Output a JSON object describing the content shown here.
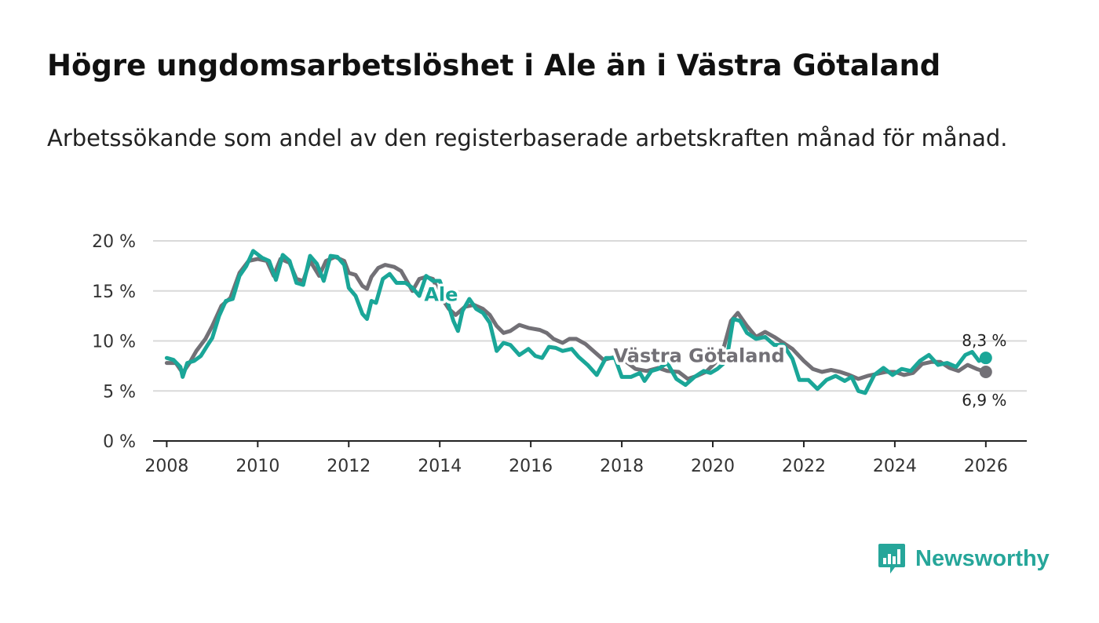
{
  "title": "Högre ungdomsarbetslöshet i Ale än i Västra Götaland",
  "subtitle": "Arbetssökande som andel av den registerbaserade arbetskraften månad för månad.",
  "brand": {
    "name": "Newsworthy",
    "icon": "bar-chart-speech-icon",
    "color": "#26a69a"
  },
  "chart_data": {
    "type": "line",
    "title": "Högre ungdomsarbetslöshet i Ale än i Västra Götaland",
    "xlabel": "",
    "ylabel": "",
    "xlim": [
      2007.7,
      2026.9
    ],
    "ylim": [
      0,
      20
    ],
    "y_ticks": [
      0,
      5,
      10,
      15,
      20
    ],
    "y_tick_labels": [
      "0 %",
      "5 %",
      "10 %",
      "15 %",
      "20 %"
    ],
    "x_ticks": [
      2008,
      2010,
      2012,
      2014,
      2016,
      2018,
      2020,
      2022,
      2024,
      2026
    ],
    "x_tick_labels": [
      "2008",
      "2010",
      "2012",
      "2014",
      "2016",
      "2018",
      "2020",
      "2022",
      "2024",
      "2026"
    ],
    "grid": true,
    "series": [
      {
        "name": "Västra Götaland",
        "label": "Västra Götaland",
        "color": "#727076",
        "end_label": "6,9 %",
        "points": [
          [
            2008.0,
            7.8
          ],
          [
            2008.2,
            7.8
          ],
          [
            2008.35,
            6.8
          ],
          [
            2008.5,
            7.8
          ],
          [
            2008.65,
            9.0
          ],
          [
            2008.85,
            10.2
          ],
          [
            2009.0,
            11.5
          ],
          [
            2009.2,
            13.5
          ],
          [
            2009.4,
            14.3
          ],
          [
            2009.6,
            16.8
          ],
          [
            2009.8,
            18.0
          ],
          [
            2010.0,
            18.2
          ],
          [
            2010.2,
            18.0
          ],
          [
            2010.35,
            16.5
          ],
          [
            2010.5,
            18.2
          ],
          [
            2010.7,
            17.8
          ],
          [
            2010.85,
            16.2
          ],
          [
            2011.0,
            16.0
          ],
          [
            2011.15,
            18.0
          ],
          [
            2011.35,
            16.5
          ],
          [
            2011.5,
            18.0
          ],
          [
            2011.7,
            18.4
          ],
          [
            2011.9,
            18.0
          ],
          [
            2012.0,
            16.8
          ],
          [
            2012.15,
            16.6
          ],
          [
            2012.3,
            15.5
          ],
          [
            2012.4,
            15.2
          ],
          [
            2012.5,
            16.4
          ],
          [
            2012.65,
            17.3
          ],
          [
            2012.8,
            17.6
          ],
          [
            2013.0,
            17.4
          ],
          [
            2013.15,
            17.0
          ],
          [
            2013.3,
            15.8
          ],
          [
            2013.4,
            15.0
          ],
          [
            2013.55,
            16.2
          ],
          [
            2013.7,
            16.4
          ],
          [
            2013.85,
            16.2
          ],
          [
            2014.0,
            14.6
          ],
          [
            2014.2,
            13.2
          ],
          [
            2014.35,
            12.6
          ],
          [
            2014.55,
            13.4
          ],
          [
            2014.75,
            13.6
          ],
          [
            2014.95,
            13.2
          ],
          [
            2015.1,
            12.6
          ],
          [
            2015.25,
            11.5
          ],
          [
            2015.4,
            10.8
          ],
          [
            2015.55,
            11.0
          ],
          [
            2015.75,
            11.6
          ],
          [
            2015.95,
            11.3
          ],
          [
            2016.2,
            11.1
          ],
          [
            2016.35,
            10.8
          ],
          [
            2016.5,
            10.2
          ],
          [
            2016.7,
            9.8
          ],
          [
            2016.85,
            10.2
          ],
          [
            2017.0,
            10.2
          ],
          [
            2017.2,
            9.7
          ],
          [
            2017.4,
            8.9
          ],
          [
            2017.6,
            8.1
          ],
          [
            2017.85,
            8.4
          ],
          [
            2018.1,
            7.9
          ],
          [
            2018.3,
            7.2
          ],
          [
            2018.55,
            7.0
          ],
          [
            2018.8,
            7.3
          ],
          [
            2019.0,
            7.0
          ],
          [
            2019.25,
            6.9
          ],
          [
            2019.45,
            6.2
          ],
          [
            2019.65,
            6.5
          ],
          [
            2019.85,
            6.9
          ],
          [
            2020.05,
            7.8
          ],
          [
            2020.25,
            9.5
          ],
          [
            2020.4,
            12.0
          ],
          [
            2020.55,
            12.8
          ],
          [
            2020.75,
            11.5
          ],
          [
            2020.95,
            10.4
          ],
          [
            2021.15,
            10.9
          ],
          [
            2021.35,
            10.4
          ],
          [
            2021.55,
            9.8
          ],
          [
            2021.75,
            9.2
          ],
          [
            2022.0,
            8.0
          ],
          [
            2022.2,
            7.2
          ],
          [
            2022.4,
            6.9
          ],
          [
            2022.6,
            7.1
          ],
          [
            2022.8,
            6.9
          ],
          [
            2023.0,
            6.6
          ],
          [
            2023.2,
            6.2
          ],
          [
            2023.4,
            6.5
          ],
          [
            2023.6,
            6.7
          ],
          [
            2023.8,
            6.9
          ],
          [
            2024.0,
            6.9
          ],
          [
            2024.2,
            6.6
          ],
          [
            2024.4,
            6.8
          ],
          [
            2024.6,
            7.7
          ],
          [
            2024.8,
            7.9
          ],
          [
            2025.0,
            7.9
          ],
          [
            2025.2,
            7.3
          ],
          [
            2025.4,
            7.0
          ],
          [
            2025.6,
            7.6
          ],
          [
            2025.8,
            7.2
          ],
          [
            2026.0,
            6.9
          ]
        ]
      },
      {
        "name": "Ale",
        "label": "Ale",
        "color": "#1aa698",
        "end_label": "8,3 %",
        "points": [
          [
            2008.0,
            8.3
          ],
          [
            2008.15,
            8.1
          ],
          [
            2008.3,
            7.4
          ],
          [
            2008.35,
            6.4
          ],
          [
            2008.45,
            7.8
          ],
          [
            2008.6,
            8.0
          ],
          [
            2008.75,
            8.5
          ],
          [
            2008.9,
            9.6
          ],
          [
            2009.0,
            10.3
          ],
          [
            2009.15,
            12.5
          ],
          [
            2009.3,
            14.0
          ],
          [
            2009.45,
            14.2
          ],
          [
            2009.6,
            16.5
          ],
          [
            2009.75,
            17.5
          ],
          [
            2009.9,
            19.0
          ],
          [
            2010.1,
            18.3
          ],
          [
            2010.25,
            18.0
          ],
          [
            2010.4,
            16.1
          ],
          [
            2010.55,
            18.6
          ],
          [
            2010.7,
            18.0
          ],
          [
            2010.85,
            15.8
          ],
          [
            2011.0,
            15.6
          ],
          [
            2011.15,
            18.5
          ],
          [
            2011.3,
            17.7
          ],
          [
            2011.45,
            16.0
          ],
          [
            2011.6,
            18.5
          ],
          [
            2011.75,
            18.4
          ],
          [
            2011.9,
            17.6
          ],
          [
            2012.0,
            15.3
          ],
          [
            2012.15,
            14.5
          ],
          [
            2012.3,
            12.7
          ],
          [
            2012.4,
            12.2
          ],
          [
            2012.5,
            14.0
          ],
          [
            2012.6,
            13.8
          ],
          [
            2012.75,
            16.2
          ],
          [
            2012.9,
            16.7
          ],
          [
            2013.05,
            15.8
          ],
          [
            2013.25,
            15.8
          ],
          [
            2013.4,
            15.3
          ],
          [
            2013.55,
            14.5
          ],
          [
            2013.7,
            16.5
          ],
          [
            2013.85,
            16.0
          ],
          [
            2014.0,
            16.0
          ],
          [
            2014.15,
            14.2
          ],
          [
            2014.3,
            12.0
          ],
          [
            2014.4,
            11.0
          ],
          [
            2014.5,
            13.0
          ],
          [
            2014.65,
            14.2
          ],
          [
            2014.8,
            13.2
          ],
          [
            2014.95,
            12.8
          ],
          [
            2015.1,
            11.8
          ],
          [
            2015.25,
            9.0
          ],
          [
            2015.4,
            9.8
          ],
          [
            2015.55,
            9.6
          ],
          [
            2015.75,
            8.6
          ],
          [
            2015.95,
            9.2
          ],
          [
            2016.1,
            8.5
          ],
          [
            2016.25,
            8.3
          ],
          [
            2016.4,
            9.4
          ],
          [
            2016.55,
            9.3
          ],
          [
            2016.7,
            9.0
          ],
          [
            2016.9,
            9.2
          ],
          [
            2017.05,
            8.4
          ],
          [
            2017.25,
            7.6
          ],
          [
            2017.45,
            6.6
          ],
          [
            2017.65,
            8.3
          ],
          [
            2017.85,
            8.3
          ],
          [
            2018.0,
            6.4
          ],
          [
            2018.2,
            6.4
          ],
          [
            2018.4,
            6.8
          ],
          [
            2018.5,
            6.0
          ],
          [
            2018.65,
            7.0
          ],
          [
            2018.8,
            7.2
          ],
          [
            2019.0,
            7.8
          ],
          [
            2019.2,
            6.2
          ],
          [
            2019.4,
            5.6
          ],
          [
            2019.6,
            6.4
          ],
          [
            2019.8,
            7.0
          ],
          [
            2019.95,
            6.8
          ],
          [
            2020.1,
            7.2
          ],
          [
            2020.3,
            8.0
          ],
          [
            2020.45,
            12.2
          ],
          [
            2020.6,
            12.0
          ],
          [
            2020.75,
            10.8
          ],
          [
            2020.95,
            10.2
          ],
          [
            2021.15,
            10.4
          ],
          [
            2021.35,
            9.6
          ],
          [
            2021.55,
            9.6
          ],
          [
            2021.75,
            8.2
          ],
          [
            2021.9,
            6.1
          ],
          [
            2022.1,
            6.1
          ],
          [
            2022.3,
            5.2
          ],
          [
            2022.5,
            6.1
          ],
          [
            2022.7,
            6.5
          ],
          [
            2022.9,
            6.0
          ],
          [
            2023.05,
            6.4
          ],
          [
            2023.2,
            5.0
          ],
          [
            2023.35,
            4.8
          ],
          [
            2023.55,
            6.6
          ],
          [
            2023.75,
            7.3
          ],
          [
            2023.95,
            6.6
          ],
          [
            2024.15,
            7.2
          ],
          [
            2024.35,
            7.0
          ],
          [
            2024.55,
            8.0
          ],
          [
            2024.75,
            8.6
          ],
          [
            2024.95,
            7.6
          ],
          [
            2025.15,
            7.8
          ],
          [
            2025.35,
            7.4
          ],
          [
            2025.55,
            8.6
          ],
          [
            2025.7,
            8.9
          ],
          [
            2025.85,
            8.0
          ],
          [
            2026.0,
            8.3
          ]
        ]
      }
    ]
  }
}
